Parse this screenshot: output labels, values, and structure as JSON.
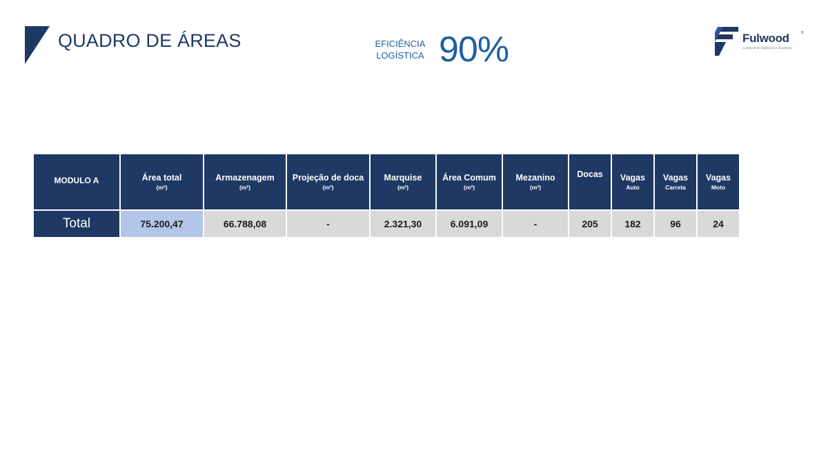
{
  "header": {
    "title": "QUADRO DE ÁREAS",
    "efficiency_label_line1": "EFICIÊNCIA",
    "efficiency_label_line2": "LOGÍSTICA",
    "efficiency_value": "90%"
  },
  "logo": {
    "name": "Fulwood",
    "registered": "®",
    "tagline": "Condomínios logísticos e industriais"
  },
  "table": {
    "header_module": "MODULO A",
    "columns": [
      {
        "label": "Área total",
        "unit": "(m²)"
      },
      {
        "label": "Armazenagem",
        "unit": "(m²)"
      },
      {
        "label": "Projeção de  doca",
        "unit": "(m²)"
      },
      {
        "label": "Marquise",
        "unit": "(m²)"
      },
      {
        "label": "Área Comum",
        "unit": "(m²)"
      },
      {
        "label": "Mezanino",
        "unit": "(m²)"
      },
      {
        "label": "Docas",
        "unit": ""
      },
      {
        "label": "Vagas",
        "unit": "Auto"
      },
      {
        "label": "Vagas",
        "unit": "Carreta"
      },
      {
        "label": "Vagas",
        "unit": "Moto"
      }
    ],
    "row_label": "Total",
    "values": [
      "75.200,47",
      "66.788,08",
      "-",
      "2.321,30",
      "6.091,09",
      "-",
      "205",
      "182",
      "96",
      "24"
    ]
  },
  "colors": {
    "navy": "#1f3864",
    "accent_blue": "#1f5fa0",
    "highlight_cell": "#b4c6e7",
    "cell_gray": "#d9d9d9"
  },
  "icons": {
    "title_mark": "navy-triangle-mark-icon",
    "logo_mark": "fulwood-f-logo-icon"
  }
}
